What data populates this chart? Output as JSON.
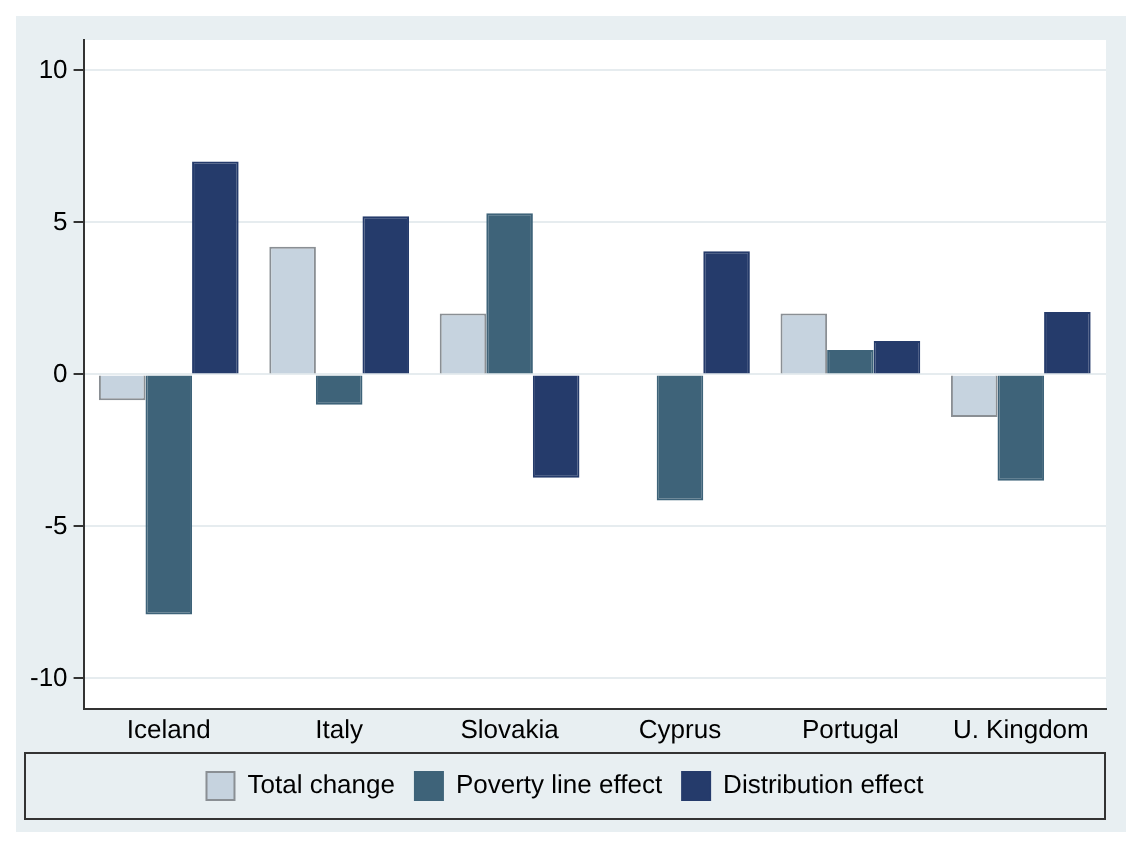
{
  "chart_data": {
    "type": "bar",
    "categories": [
      "Iceland",
      "Italy",
      "Slovakia",
      "Cyprus",
      "Portugal",
      "U. Kingdom"
    ],
    "series": [
      {
        "name": "Total change",
        "color": "#c6d3df",
        "values": [
          -0.85,
          4.2,
          2.0,
          0,
          2.0,
          -1.4
        ]
      },
      {
        "name": "Poverty line effect",
        "color": "#3e6379",
        "values": [
          -7.9,
          -1.0,
          5.3,
          -4.15,
          0.8,
          -3.5
        ]
      },
      {
        "name": "Distribution effect",
        "color": "#253b6b",
        "values": [
          7.0,
          5.2,
          -3.4,
          4.05,
          1.1,
          2.05
        ]
      }
    ],
    "ylim": [
      -11,
      11
    ],
    "yticks": [
      -10,
      -5,
      0,
      5,
      10
    ],
    "grid": "y",
    "legend": "bottom"
  }
}
